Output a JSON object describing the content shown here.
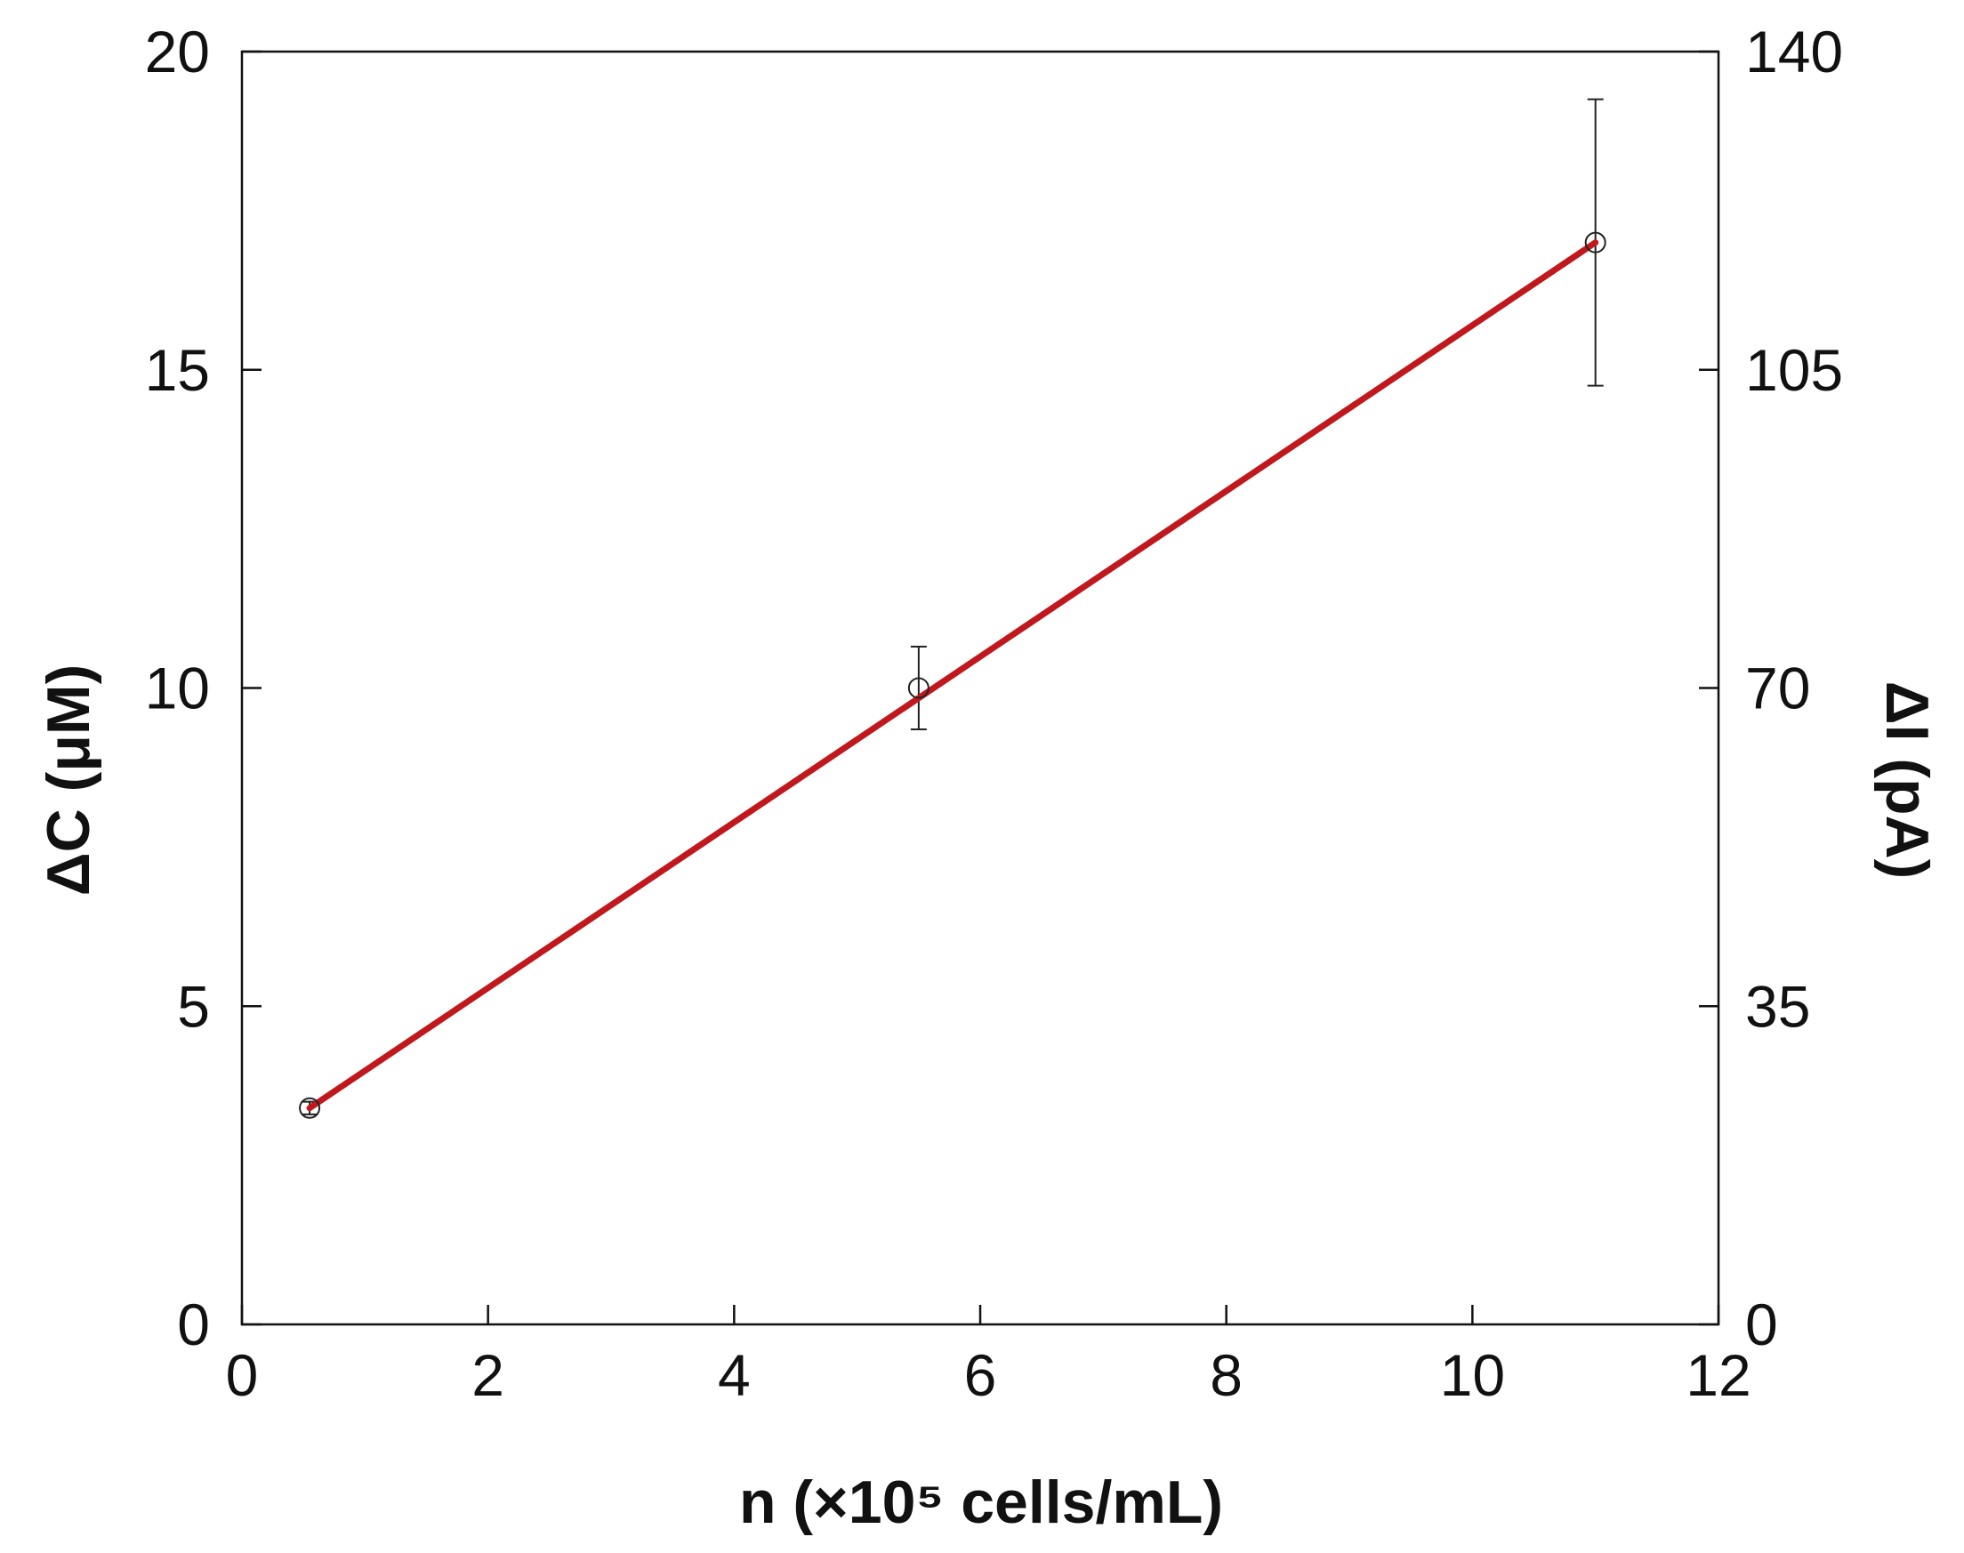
{
  "chart_data": {
    "type": "line",
    "xlabel": "n (×10⁵ cells/mL)",
    "ylabel": "ΔC (μM)",
    "y2label": "ΔI (pA)",
    "xlim": [
      0,
      12
    ],
    "ylim": [
      0,
      20
    ],
    "y2lim": [
      0,
      140
    ],
    "x_ticks": [
      0,
      2,
      4,
      6,
      8,
      10,
      12
    ],
    "y_ticks": [
      0,
      5,
      10,
      15,
      20
    ],
    "y2_ticks": [
      0,
      35,
      70,
      105,
      140
    ],
    "grid": false,
    "legend": "none",
    "series": [
      {
        "x": [
          0.55,
          5.5,
          11.0
        ],
        "y": [
          3.4,
          10.0,
          17.0
        ],
        "yerr": [
          0.1,
          0.65,
          2.25
        ],
        "marker": "open-circle",
        "color": "#222222"
      }
    ],
    "fit_line": {
      "x": [
        0.55,
        11.0
      ],
      "y": [
        3.4,
        17.0
      ],
      "color": "#c0181c"
    }
  }
}
